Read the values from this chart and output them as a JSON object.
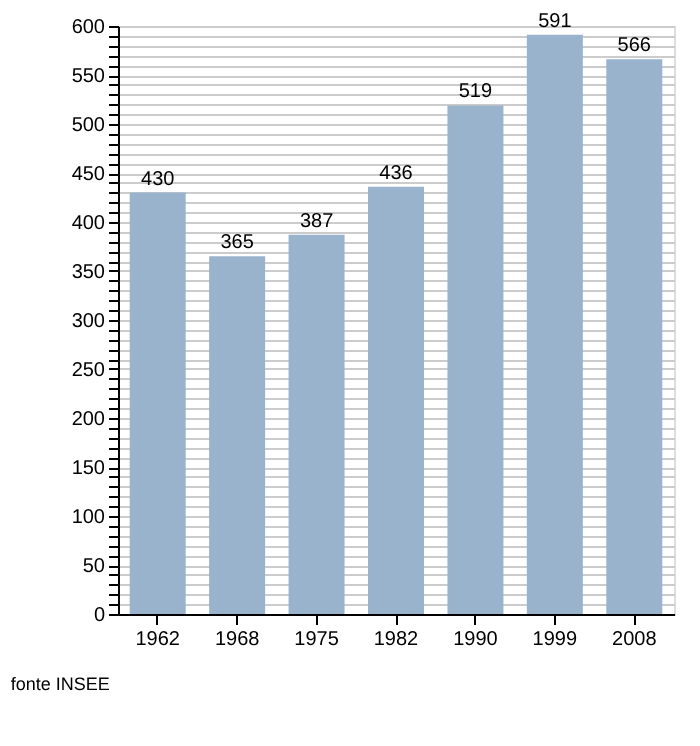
{
  "chart_data": {
    "type": "bar",
    "categories": [
      "1962",
      "1968",
      "1975",
      "1982",
      "1990",
      "1999",
      "2008"
    ],
    "values": [
      430,
      365,
      387,
      436,
      519,
      591,
      566
    ],
    "color": "#9ab3cc",
    "ylim": [
      0,
      600
    ],
    "yticks": [
      0,
      {
        "value": 10,
        "label": null
      },
      {
        "value": 20,
        "label": null
      },
      {
        "value": 30,
        "label": null
      },
      {
        "value": 40,
        "label": null
      },
      50,
      {
        "value": 60,
        "label": null
      },
      {
        "value": 70,
        "label": null
      },
      {
        "value": 80,
        "label": null
      },
      {
        "value": 90,
        "label": null
      },
      100,
      {
        "value": 110,
        "label": null
      },
      {
        "value": 120,
        "label": null
      },
      {
        "value": 130,
        "label": null
      },
      {
        "value": 140,
        "label": null
      },
      150,
      {
        "value": 160,
        "label": null
      },
      {
        "value": 170,
        "label": null
      },
      {
        "value": 180,
        "label": null
      },
      {
        "value": 190,
        "label": null
      },
      200,
      {
        "value": 210,
        "label": null
      },
      {
        "value": 220,
        "label": null
      },
      {
        "value": 230,
        "label": null
      },
      {
        "value": 240,
        "label": null
      },
      250,
      {
        "value": 260,
        "label": null
      },
      {
        "value": 270,
        "label": null
      },
      {
        "value": 280,
        "label": null
      },
      {
        "value": 290,
        "label": null
      },
      300,
      {
        "value": 310,
        "label": null
      },
      {
        "value": 320,
        "label": null
      },
      {
        "value": 330,
        "label": null
      },
      {
        "value": 340,
        "label": null
      },
      350,
      {
        "value": 360,
        "label": null
      },
      {
        "value": 370,
        "label": null
      },
      {
        "value": 380,
        "label": null
      },
      {
        "value": 390,
        "label": null
      },
      400,
      {
        "value": 410,
        "label": null
      },
      {
        "value": 420,
        "label": null
      },
      {
        "value": 430,
        "label": null
      },
      {
        "value": 440,
        "label": null
      },
      450,
      {
        "value": 460,
        "label": null
      },
      {
        "value": 470,
        "label": null
      },
      {
        "value": 480,
        "label": null
      },
      {
        "value": 490,
        "label": null
      },
      500,
      {
        "value": 510,
        "label": null
      },
      {
        "value": 520,
        "label": null
      },
      {
        "value": 530,
        "label": null
      },
      {
        "value": 540,
        "label": null
      },
      550,
      {
        "value": 560,
        "label": null
      },
      {
        "value": 570,
        "label": null
      },
      {
        "value": 580,
        "label": null
      },
      {
        "value": 590,
        "label": null
      },
      600
    ],
    "grid": "y",
    "data_labels": true,
    "annotations": [
      "fonte INSEE"
    ]
  }
}
